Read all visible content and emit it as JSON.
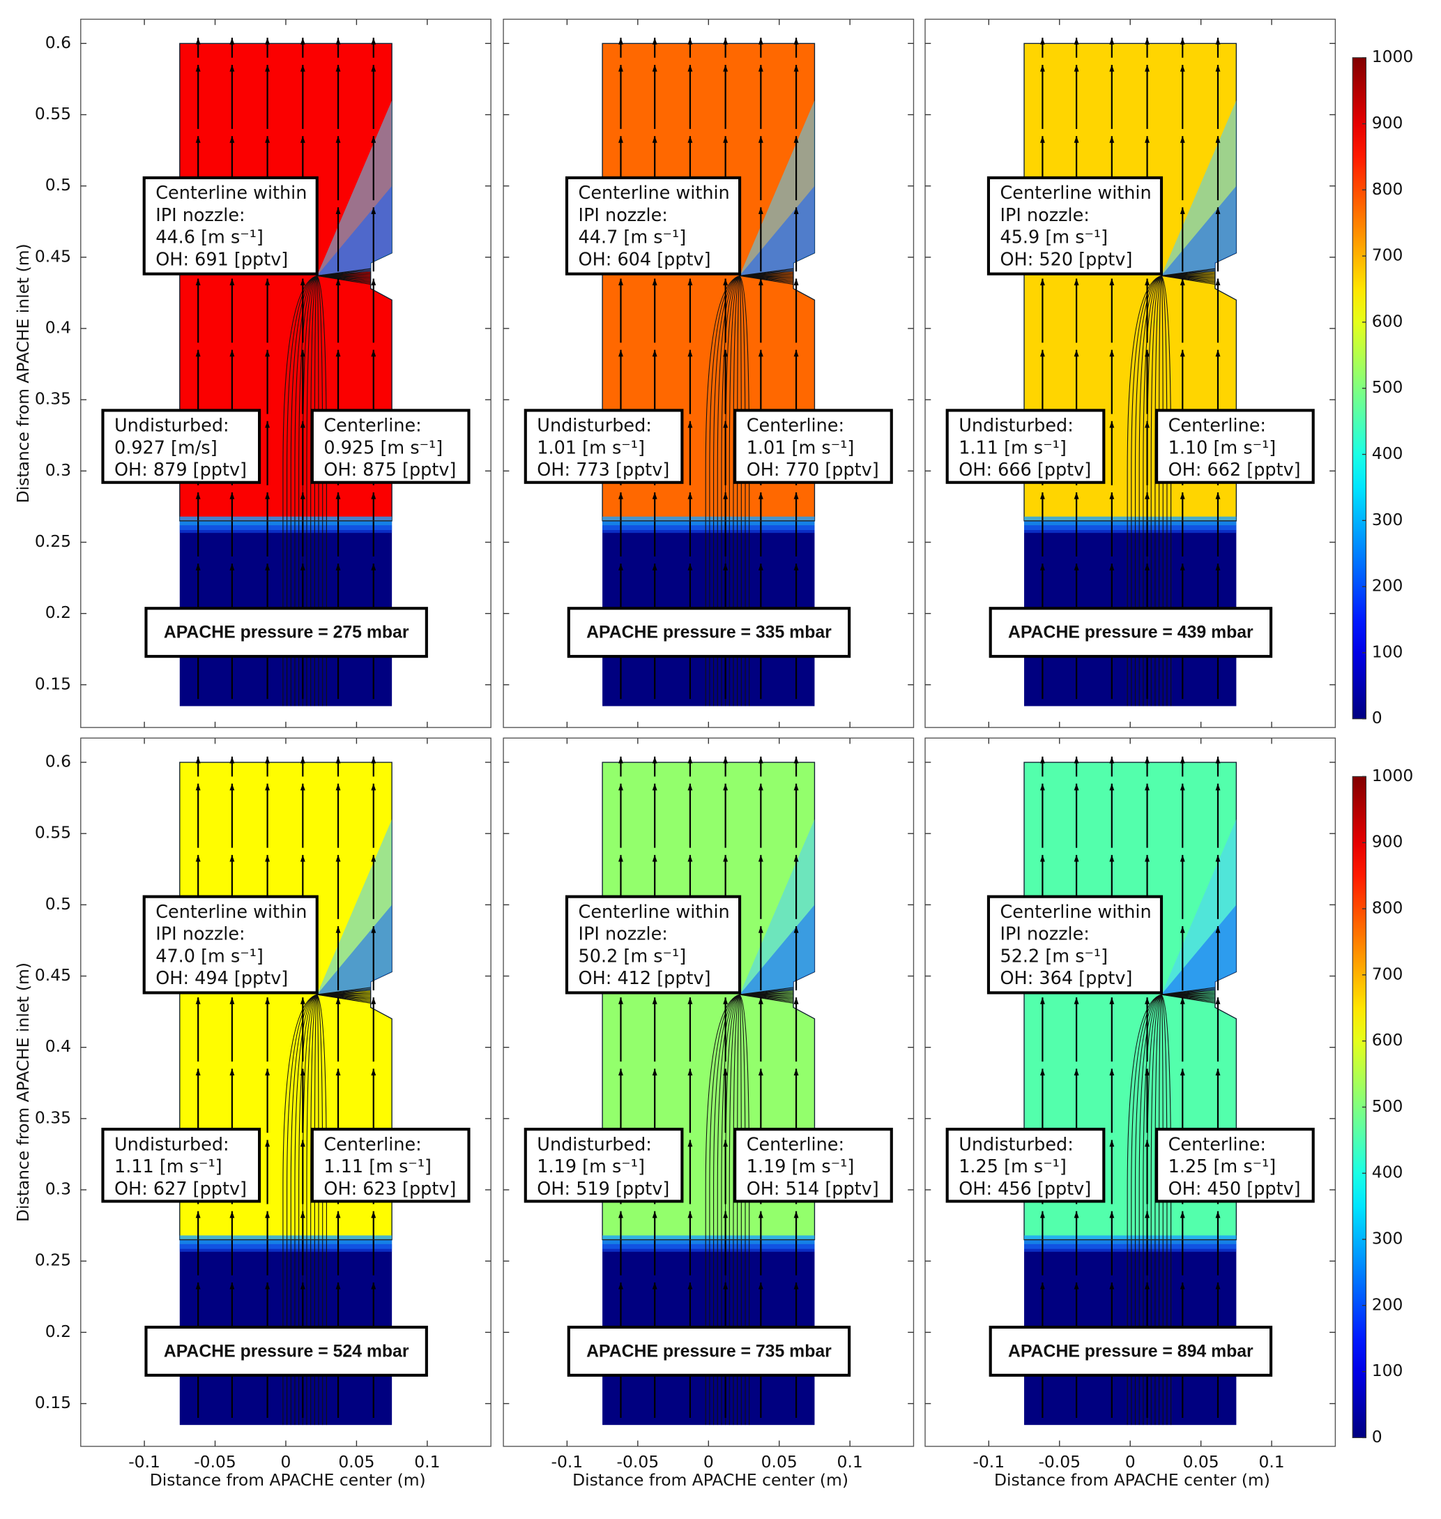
{
  "chart_data": [
    {
      "type": "heatmap",
      "ylabel": "Distance  from APACHE inlet (m)",
      "xlim": [
        -0.145,
        0.145
      ],
      "ylim": [
        0.12,
        0.617
      ],
      "xticks": [
        -0.1,
        -0.05,
        0,
        0.05,
        0.1
      ],
      "yticks": [
        0.15,
        0.2,
        0.25,
        0.3,
        0.35,
        0.4,
        0.45,
        0.5,
        0.55,
        0.6
      ],
      "values": [
        879,
        0
      ],
      "callouts": [
        [
          "Centerline within",
          "IPI nozzle:",
          "44.6 [m s⁻¹]",
          "OH: 691 [pptv]"
        ],
        [
          "Undisturbed:",
          "0.927 [m/s]",
          "OH: 879 [pptv]"
        ],
        [
          "Centerline:",
          "0.925 [m s⁻¹]",
          "OH: 875 [pptv]"
        ]
      ],
      "pressure_label": "APACHE pressure  = 275 mbar"
    },
    {
      "type": "heatmap",
      "xlim": [
        -0.145,
        0.145
      ],
      "ylim": [
        0.12,
        0.617
      ],
      "xticks": [
        -0.1,
        -0.05,
        0,
        0.05,
        0.1
      ],
      "yticks": [
        0.15,
        0.2,
        0.25,
        0.3,
        0.35,
        0.4,
        0.45,
        0.5,
        0.55,
        0.6
      ],
      "values": [
        773,
        0
      ],
      "callouts": [
        [
          "Centerline within",
          "IPI nozzle:",
          "44.7 [m s⁻¹]",
          "OH: 604 [pptv]"
        ],
        [
          "Undisturbed:",
          "1.01 [m s⁻¹]",
          "OH: 773 [pptv]"
        ],
        [
          "Centerline:",
          "1.01 [m s⁻¹]",
          "OH: 770 [pptv]"
        ]
      ],
      "pressure_label": "APACHE pressure  = 335 mbar"
    },
    {
      "type": "heatmap",
      "xlim": [
        -0.145,
        0.145
      ],
      "ylim": [
        0.12,
        0.617
      ],
      "xticks": [
        -0.1,
        -0.05,
        0,
        0.05,
        0.1
      ],
      "yticks": [
        0.15,
        0.2,
        0.25,
        0.3,
        0.35,
        0.4,
        0.45,
        0.5,
        0.55,
        0.6
      ],
      "values": [
        666,
        0
      ],
      "callouts": [
        [
          "Centerline within",
          "IPI nozzle:",
          "45.9 [m s⁻¹]",
          "OH: 520 [pptv]"
        ],
        [
          "Undisturbed:",
          "1.11 [m s⁻¹]",
          "OH: 666 [pptv]"
        ],
        [
          "Centerline:",
          "1.10 [m s⁻¹]",
          "OH: 662 [pptv]"
        ]
      ],
      "pressure_label": "APACHE pressure = 439 mbar"
    },
    {
      "type": "heatmap",
      "xlabel": "Distance  from APACHE center (m)",
      "ylabel": "Distance  from APACHE inlet (m)",
      "xlim": [
        -0.145,
        0.145
      ],
      "ylim": [
        0.12,
        0.617
      ],
      "xticks": [
        -0.1,
        -0.05,
        0,
        0.05,
        0.1
      ],
      "yticks": [
        0.15,
        0.2,
        0.25,
        0.3,
        0.35,
        0.4,
        0.45,
        0.5,
        0.55,
        0.6
      ],
      "values": [
        627,
        0
      ],
      "callouts": [
        [
          "Centerline within",
          "IPI nozzle:",
          "47.0 [m s⁻¹]",
          "OH: 494 [pptv]"
        ],
        [
          "Undisturbed:",
          "1.11 [m s⁻¹]",
          "OH: 627 [pptv]"
        ],
        [
          "Centerline:",
          "1.11 [m s⁻¹]",
          "OH: 623 [pptv]"
        ]
      ],
      "pressure_label": "APACHE pressure  = 524 mbar"
    },
    {
      "type": "heatmap",
      "xlabel": "Distance  from APACHE center (m)",
      "xlim": [
        -0.145,
        0.145
      ],
      "ylim": [
        0.12,
        0.617
      ],
      "xticks": [
        -0.1,
        -0.05,
        0,
        0.05,
        0.1
      ],
      "yticks": [
        0.15,
        0.2,
        0.25,
        0.3,
        0.35,
        0.4,
        0.45,
        0.5,
        0.55,
        0.6
      ],
      "values": [
        519,
        0
      ],
      "callouts": [
        [
          "Centerline within",
          "IPI nozzle:",
          "50.2 [m s⁻¹]",
          "OH: 412 [pptv]"
        ],
        [
          "Undisturbed:",
          "1.19 [m s⁻¹]",
          "OH: 519 [pptv]"
        ],
        [
          "Centerline:",
          "1.19 [m s⁻¹]",
          "OH: 514 [pptv]"
        ]
      ],
      "pressure_label": "APACHE pressure  = 735 mbar"
    },
    {
      "type": "heatmap",
      "xlabel": "Distance  from APACHE center (m)",
      "xlim": [
        -0.145,
        0.145
      ],
      "ylim": [
        0.12,
        0.617
      ],
      "xticks": [
        -0.1,
        -0.05,
        0,
        0.05,
        0.1
      ],
      "yticks": [
        0.15,
        0.2,
        0.25,
        0.3,
        0.35,
        0.4,
        0.45,
        0.5,
        0.55,
        0.6
      ],
      "values": [
        456,
        0
      ],
      "callouts": [
        [
          "Centerline within",
          "IPI nozzle:",
          "52.2 [m s⁻¹]",
          "OH: 364 [pptv]"
        ],
        [
          "Undisturbed:",
          "1.25 [m s⁻¹]",
          "OH: 456 [pptv]"
        ],
        [
          "Centerline:",
          "1.25 [m s⁻¹]",
          "OH: 450 [pptv]"
        ]
      ],
      "pressure_label": "APACHE pressure = 894 mbar"
    }
  ],
  "colorbar": {
    "zlim": [
      0,
      1000
    ],
    "zticks": [
      0,
      100,
      200,
      300,
      400,
      500,
      600,
      700,
      800,
      900,
      1000
    ]
  }
}
